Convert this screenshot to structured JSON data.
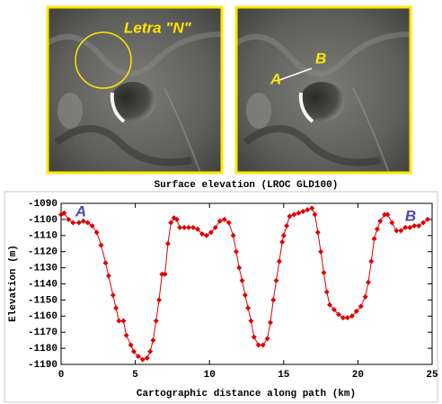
{
  "images": [
    {
      "labels": [
        "Letra \"N\""
      ]
    },
    {
      "labels": [
        "A",
        "B"
      ]
    }
  ],
  "chart_data": {
    "type": "line",
    "title": "Surface elevation (LROC GLD100)",
    "xlabel": "Cartographic distance along path (km)",
    "ylabel": "Elevation (m)",
    "x": [
      0,
      0.2,
      0.5,
      0.8,
      1.2,
      1.5,
      1.8,
      2.1,
      2.4,
      2.7,
      3.0,
      3.2,
      3.5,
      3.7,
      3.9,
      4.2,
      4.4,
      4.7,
      4.9,
      5.2,
      5.5,
      5.8,
      6.0,
      6.2,
      6.4,
      6.6,
      6.8,
      7.0,
      7.2,
      7.4,
      7.6,
      7.8,
      8.0,
      8.3,
      8.6,
      8.9,
      9.2,
      9.5,
      9.8,
      10.1,
      10.4,
      10.7,
      11.0,
      11.3,
      11.6,
      11.8,
      12.0,
      12.2,
      12.4,
      12.6,
      12.8,
      13.0,
      13.3,
      13.6,
      13.9,
      14.1,
      14.3,
      14.5,
      14.7,
      14.9,
      15.0,
      15.2,
      15.4,
      15.7,
      16.0,
      16.3,
      16.6,
      16.9,
      17.1,
      17.3,
      17.5,
      17.7,
      17.9,
      18.1,
      18.4,
      18.7,
      19.0,
      19.3,
      19.6,
      19.9,
      20.2,
      20.5,
      20.7,
      20.9,
      21.1,
      21.3,
      21.5,
      21.8,
      22.0,
      22.3,
      22.6,
      22.9,
      23.2,
      23.5,
      23.8,
      24.1,
      24.4,
      24.7
    ],
    "values": [
      -1097,
      -1096,
      -1100,
      -1102,
      -1102,
      -1101,
      -1102,
      -1104,
      -1108,
      -1116,
      -1127,
      -1135,
      -1147,
      -1155,
      -1163,
      -1163,
      -1172,
      -1178,
      -1182,
      -1185,
      -1187,
      -1186,
      -1182,
      -1175,
      -1163,
      -1150,
      -1134,
      -1134,
      -1115,
      -1102,
      -1099,
      -1100,
      -1105,
      -1105,
      -1105,
      -1105,
      -1106,
      -1109,
      -1110,
      -1108,
      -1105,
      -1101,
      -1100,
      -1102,
      -1110,
      -1120,
      -1130,
      -1138,
      -1147,
      -1155,
      -1163,
      -1173,
      -1178,
      -1178,
      -1174,
      -1164,
      -1150,
      -1138,
      -1126,
      -1114,
      -1110,
      -1104,
      -1098,
      -1097,
      -1096,
      -1095,
      -1094,
      -1093,
      -1097,
      -1108,
      -1120,
      -1133,
      -1145,
      -1153,
      -1156,
      -1159,
      -1161,
      -1161,
      -1160,
      -1157,
      -1154,
      -1148,
      -1139,
      -1126,
      -1112,
      -1106,
      -1101,
      -1097,
      -1097,
      -1102,
      -1107,
      -1107,
      -1105,
      -1105,
      -1104,
      -1104,
      -1102,
      -1100
    ],
    "color": "#e00000",
    "annotations": [
      "A",
      "B"
    ],
    "xlim": [
      0,
      25
    ],
    "xticks": [
      0,
      5,
      10,
      15,
      20,
      25
    ],
    "ylim": [
      -1190,
      -1090
    ],
    "yticks": [
      -1190,
      -1180,
      -1170,
      -1160,
      -1150,
      -1140,
      -1130,
      -1120,
      -1110,
      -1100,
      -1090
    ],
    "grid": false
  }
}
